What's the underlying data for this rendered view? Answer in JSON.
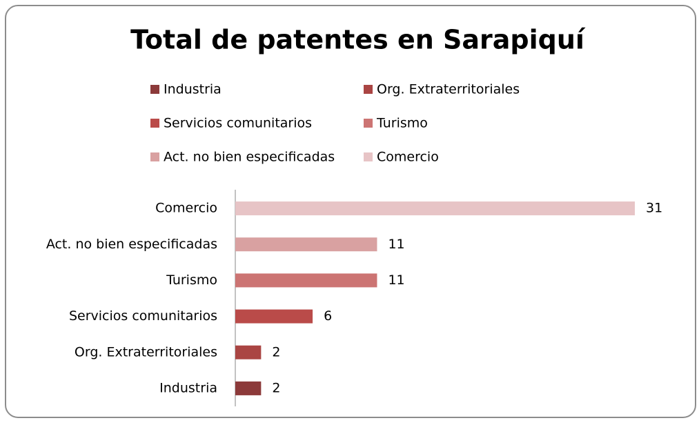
{
  "chart_data": {
    "type": "bar",
    "orientation": "horizontal",
    "title": "Total de patentes en Sarapiquí",
    "categories": [
      "Industria",
      "Org. Extraterritoriales",
      "Servicios comunitarios",
      "Turismo",
      "Act. no bien especificadas",
      "Comercio"
    ],
    "values": [
      2,
      2,
      6,
      11,
      11,
      31
    ],
    "colors": [
      "#8c3a3a",
      "#aa4543",
      "#ba4b49",
      "#cc7473",
      "#d9a1a1",
      "#e7c4c6"
    ],
    "xlim": [
      0,
      31
    ],
    "legend": "top"
  }
}
